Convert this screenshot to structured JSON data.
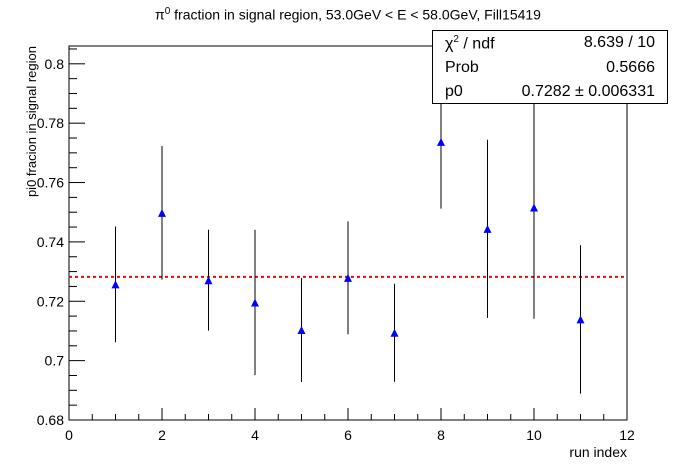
{
  "chart_data": {
    "type": "scatter",
    "title_parts": [
      "π",
      "0",
      " fraction in signal region, 53.0GeV < E < 58.0GeV, Fill15419"
    ],
    "xlabel": "run index",
    "ylabel": "pi0 fracion in signal region",
    "xlim": [
      0,
      12
    ],
    "ylim": [
      0.68,
      0.806
    ],
    "x_ticks": [
      "0",
      "2",
      "4",
      "6",
      "8",
      "10",
      "12"
    ],
    "y_ticks": [
      "0.68",
      "0.7",
      "0.72",
      "0.74",
      "0.76",
      "0.78",
      "0.8"
    ],
    "series": [
      {
        "x": [
          1,
          2,
          3,
          4,
          5,
          6,
          7,
          8,
          9,
          10,
          11
        ],
        "y": [
          0.7257,
          0.7498,
          0.7271,
          0.7196,
          0.7103,
          0.7279,
          0.7094,
          0.7737,
          0.7444,
          0.7516,
          0.7139
        ],
        "err": [
          0.0195,
          0.0225,
          0.017,
          0.0245,
          0.0175,
          0.019,
          0.0165,
          0.0225,
          0.03,
          0.0375,
          0.025
        ],
        "color": "#0000ff"
      }
    ],
    "fit": {
      "value": 0.7282,
      "color": "#ff0000",
      "style": "dotted"
    },
    "stats": [
      {
        "key_parts": [
          "χ",
          "2",
          " / ndf"
        ],
        "value": "8.639 / 10"
      },
      {
        "key_parts": [
          "Prob"
        ],
        "value": "0.5666"
      },
      {
        "key_parts": [
          "p0"
        ],
        "value": "0.7282 ± 0.006331"
      }
    ]
  }
}
